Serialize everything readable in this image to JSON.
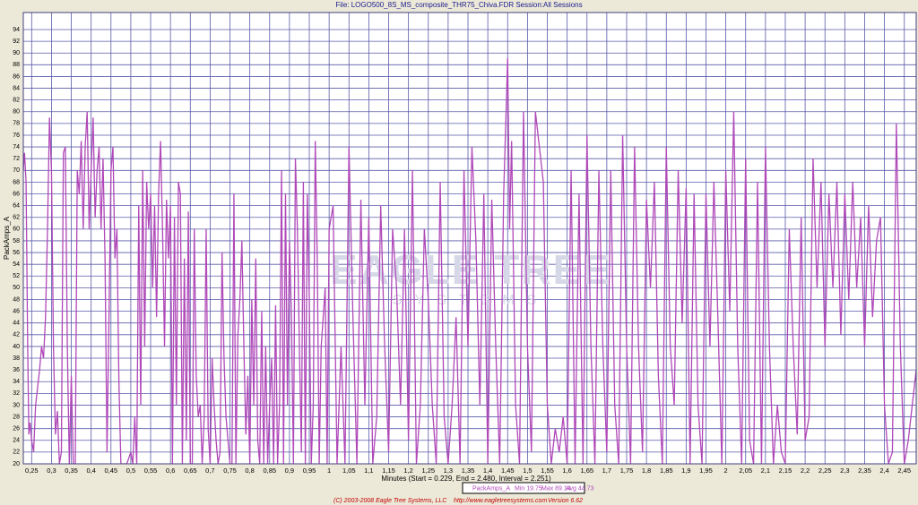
{
  "chart_data": {
    "type": "line",
    "title": "File: LOGO500_8S_MS_composite_THR75_Chiva.FDR   Session:All Sessions",
    "ylabel": "PackAmps_A",
    "xlabel": "Minutes (Start = 0.229,  End = 2.480,  Interval = 2.251)",
    "legend_stats": [
      "Min 19.75",
      "Max 89.14",
      "Avg 44.73"
    ],
    "footer": [
      "(C) 2003-2008 Eagle Tree Systems, LLC",
      "http://www.eagletreesystems.com",
      "Version 6.62"
    ],
    "watermark": {
      "title": "EAGLE TREE",
      "subtitle": "SYSTEMS"
    },
    "grid": true,
    "xlim": [
      0.229,
      2.48
    ],
    "ylim": [
      20,
      96.9
    ],
    "yticks": [
      20,
      22,
      24,
      26,
      28,
      30,
      32,
      34,
      36,
      38,
      40,
      42,
      44,
      46,
      48,
      50,
      52,
      54,
      56,
      58,
      60,
      62,
      64,
      66,
      68,
      70,
      72,
      74,
      76,
      78,
      80,
      82,
      84,
      86,
      88,
      90,
      92,
      94
    ],
    "xticks": [
      {
        "value": 0.25,
        "label": "0,25"
      },
      {
        "value": 0.3,
        "label": "0,3"
      },
      {
        "value": 0.35,
        "label": "0,35"
      },
      {
        "value": 0.4,
        "label": "0,4"
      },
      {
        "value": 0.45,
        "label": "0,45"
      },
      {
        "value": 0.5,
        "label": "0,5"
      },
      {
        "value": 0.55,
        "label": "0,55"
      },
      {
        "value": 0.6,
        "label": "0,6"
      },
      {
        "value": 0.65,
        "label": "0,65"
      },
      {
        "value": 0.7,
        "label": "0,7"
      },
      {
        "value": 0.75,
        "label": "0,75"
      },
      {
        "value": 0.8,
        "label": "0,8"
      },
      {
        "value": 0.85,
        "label": "0,85"
      },
      {
        "value": 0.9,
        "label": "0,9"
      },
      {
        "value": 0.95,
        "label": "0,95"
      },
      1,
      {
        "value": 1.05,
        "label": "1,05"
      },
      {
        "value": 1.1,
        "label": "1,1"
      },
      {
        "value": 1.15,
        "label": "1,15"
      },
      {
        "value": 1.2,
        "label": "1,2"
      },
      {
        "value": 1.25,
        "label": "1,25"
      },
      {
        "value": 1.3,
        "label": "1,3"
      },
      {
        "value": 1.35,
        "label": "1,35"
      },
      {
        "value": 1.4,
        "label": "1,4"
      },
      {
        "value": 1.45,
        "label": "1,45"
      },
      {
        "value": 1.5,
        "label": "1,5"
      },
      {
        "value": 1.55,
        "label": "1,55"
      },
      {
        "value": 1.6,
        "label": "1,6"
      },
      {
        "value": 1.65,
        "label": "1,65"
      },
      {
        "value": 1.7,
        "label": "1,7"
      },
      {
        "value": 1.75,
        "label": "1,75"
      },
      {
        "value": 1.8,
        "label": "1,8"
      },
      {
        "value": 1.85,
        "label": "1,85"
      },
      {
        "value": 1.9,
        "label": "1,9"
      },
      {
        "value": 1.95,
        "label": "1,95"
      },
      2,
      {
        "value": 2.05,
        "label": "2,05"
      },
      {
        "value": 2.1,
        "label": "2,1"
      },
      {
        "value": 2.15,
        "label": "2,15"
      },
      {
        "value": 2.2,
        "label": "2,2"
      },
      {
        "value": 2.25,
        "label": "2,25"
      },
      {
        "value": 2.3,
        "label": "2,3"
      },
      {
        "value": 2.35,
        "label": "2,35"
      },
      {
        "value": 2.4,
        "label": "2,4"
      },
      {
        "value": 2.45,
        "label": "2,45"
      }
    ],
    "x": [
      0.229,
      0.232,
      0.236,
      0.24,
      0.243,
      0.246,
      0.25,
      0.255,
      0.26,
      0.265,
      0.27,
      0.275,
      0.28,
      0.285,
      0.29,
      0.295,
      0.3,
      0.305,
      0.31,
      0.315,
      0.32,
      0.325,
      0.33,
      0.335,
      0.34,
      0.345,
      0.35,
      0.355,
      0.36,
      0.365,
      0.37,
      0.375,
      0.38,
      0.385,
      0.39,
      0.395,
      0.4,
      0.405,
      0.41,
      0.415,
      0.42,
      0.425,
      0.43,
      0.435,
      0.44,
      0.445,
      0.45,
      0.455,
      0.46,
      0.465,
      0.47,
      0.475,
      0.48,
      0.485,
      0.49,
      0.5,
      0.505,
      0.51,
      0.515,
      0.52,
      0.525,
      0.53,
      0.535,
      0.54,
      0.545,
      0.55,
      0.555,
      0.56,
      0.565,
      0.57,
      0.575,
      0.58,
      0.585,
      0.59,
      0.595,
      0.6,
      0.605,
      0.61,
      0.615,
      0.62,
      0.625,
      0.63,
      0.635,
      0.64,
      0.645,
      0.65,
      0.655,
      0.66,
      0.665,
      0.67,
      0.675,
      0.68,
      0.685,
      0.69,
      0.695,
      0.7,
      0.705,
      0.71,
      0.715,
      0.72,
      0.725,
      0.73,
      0.735,
      0.74,
      0.745,
      0.75,
      0.755,
      0.76,
      0.765,
      0.77,
      0.775,
      0.78,
      0.785,
      0.79,
      0.795,
      0.8,
      0.805,
      0.81,
      0.815,
      0.82,
      0.825,
      0.83,
      0.835,
      0.84,
      0.845,
      0.85,
      0.855,
      0.86,
      0.865,
      0.87,
      0.875,
      0.88,
      0.885,
      0.89,
      0.895,
      0.9,
      0.905,
      0.91,
      0.915,
      0.92,
      0.925,
      0.93,
      0.935,
      0.94,
      0.945,
      0.95,
      0.955,
      0.96,
      0.965,
      0.97,
      0.975,
      0.98,
      0.985,
      0.99,
      0.995,
      1.0,
      1.01,
      1.02,
      1.03,
      1.04,
      1.05,
      1.06,
      1.07,
      1.08,
      1.09,
      1.1,
      1.11,
      1.12,
      1.13,
      1.14,
      1.15,
      1.16,
      1.17,
      1.18,
      1.19,
      1.2,
      1.21,
      1.22,
      1.23,
      1.24,
      1.25,
      1.26,
      1.27,
      1.28,
      1.29,
      1.3,
      1.31,
      1.32,
      1.33,
      1.34,
      1.35,
      1.36,
      1.37,
      1.38,
      1.39,
      1.4,
      1.41,
      1.42,
      1.43,
      1.44,
      1.45,
      1.455,
      1.46,
      1.47,
      1.48,
      1.49,
      1.5,
      1.51,
      1.52,
      1.53,
      1.54,
      1.55,
      1.56,
      1.57,
      1.58,
      1.59,
      1.6,
      1.61,
      1.62,
      1.63,
      1.64,
      1.65,
      1.66,
      1.67,
      1.68,
      1.69,
      1.7,
      1.71,
      1.72,
      1.73,
      1.74,
      1.75,
      1.76,
      1.77,
      1.78,
      1.79,
      1.8,
      1.81,
      1.82,
      1.83,
      1.84,
      1.85,
      1.86,
      1.87,
      1.88,
      1.89,
      1.9,
      1.91,
      1.92,
      1.93,
      1.94,
      1.95,
      1.96,
      1.97,
      1.98,
      1.99,
      2.0,
      2.01,
      2.02,
      2.03,
      2.04,
      2.05,
      2.06,
      2.07,
      2.08,
      2.09,
      2.1,
      2.11,
      2.12,
      2.13,
      2.14,
      2.15,
      2.16,
      2.17,
      2.18,
      2.19,
      2.2,
      2.21,
      2.22,
      2.23,
      2.24,
      2.25,
      2.26,
      2.27,
      2.28,
      2.29,
      2.3,
      2.31,
      2.32,
      2.33,
      2.34,
      2.35,
      2.36,
      2.37,
      2.38,
      2.39,
      2.4,
      2.41,
      2.42,
      2.43,
      2.44,
      2.45,
      2.46,
      2.47,
      2.48
    ],
    "series": [
      {
        "name": "PackAmps_A",
        "color": "#b048b8",
        "values": [
          70,
          73,
          68,
          40,
          25,
          27,
          24,
          22,
          30,
          33,
          36,
          40,
          38,
          45,
          60,
          79,
          70,
          40,
          25,
          29,
          20,
          22,
          73,
          74,
          40,
          19.75,
          35,
          20,
          20,
          70,
          66,
          75,
          60,
          74,
          80,
          60,
          70,
          79,
          62,
          70,
          74,
          60,
          72,
          55,
          22,
          45,
          70,
          74,
          55,
          60,
          34,
          20,
          20,
          20,
          20,
          22,
          20,
          28,
          20,
          64,
          30,
          70,
          40,
          68,
          60,
          66,
          50,
          64,
          45,
          66,
          75,
          60,
          40,
          65,
          55,
          64,
          20,
          62,
          30,
          68,
          66,
          20,
          55,
          24,
          63,
          20,
          20,
          60,
          35,
          28,
          30,
          20,
          28,
          60,
          26,
          20,
          38,
          30,
          24,
          20,
          22,
          56,
          38,
          28,
          24,
          20,
          20,
          66,
          20,
          42,
          48,
          58,
          40,
          25,
          35,
          20,
          48,
          30,
          55,
          24,
          20,
          46,
          20,
          40,
          20,
          30,
          38,
          20,
          47,
          20,
          30,
          70,
          20,
          66,
          30,
          58,
          45,
          20,
          72,
          60,
          40,
          22,
          68,
          20,
          66,
          48,
          20,
          30,
          75,
          55,
          20,
          40,
          45,
          50,
          20,
          60,
          64,
          20,
          40,
          20,
          74,
          45,
          20,
          65,
          30,
          62,
          20,
          28,
          64,
          40,
          22,
          60,
          50,
          30,
          60,
          24,
          70,
          20,
          30,
          60,
          48,
          30,
          20,
          68,
          28,
          20,
          30,
          45,
          20,
          70,
          40,
          74,
          58,
          30,
          66,
          20,
          65,
          40,
          20,
          66,
          89.14,
          60,
          75,
          30,
          20,
          80,
          40,
          22,
          80,
          74,
          68,
          30,
          20,
          26,
          22,
          28,
          20,
          70,
          20,
          66,
          20,
          76,
          40,
          20,
          70,
          40,
          22,
          70,
          30,
          20,
          76,
          40,
          20,
          74,
          40,
          22,
          65,
          50,
          68,
          35,
          20,
          74,
          40,
          30,
          70,
          44,
          67,
          20,
          66,
          30,
          20,
          66,
          40,
          68,
          45,
          20,
          70,
          46,
          80,
          40,
          20,
          72,
          24,
          20,
          68,
          20,
          74,
          40,
          20,
          30,
          22,
          20,
          60,
          40,
          25,
          62,
          24,
          28,
          72,
          50,
          68,
          40,
          66,
          50,
          68,
          42,
          66,
          48,
          68,
          50,
          62,
          40,
          64,
          45,
          58,
          62,
          30,
          20,
          22,
          78,
          40,
          20,
          24,
          30,
          36
        ]
      }
    ]
  }
}
